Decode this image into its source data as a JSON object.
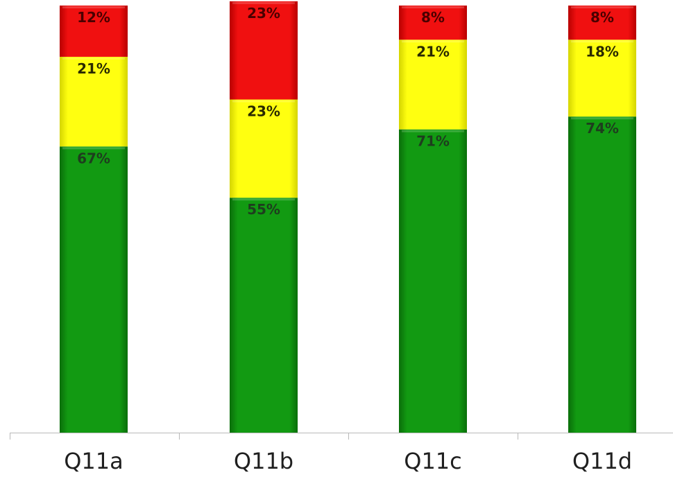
{
  "chart_data": {
    "type": "bar",
    "stacked": true,
    "categories": [
      "Q11a",
      "Q11b",
      "Q11c",
      "Q11d"
    ],
    "series": [
      {
        "color": "#0e8a0e",
        "values": [
          67,
          55,
          71,
          74
        ],
        "labels": [
          "67%",
          "55%",
          "71%",
          "74%"
        ],
        "label_color": "#1e3d1e"
      },
      {
        "color": "#f2f200",
        "values": [
          21,
          23,
          21,
          18
        ],
        "labels": [
          "21%",
          "23%",
          "21%",
          "18%"
        ],
        "label_color": "#2a2a00"
      },
      {
        "color": "#e80000",
        "values": [
          12,
          23,
          8,
          8
        ],
        "labels": [
          "12%",
          "23%",
          "8%",
          "8%"
        ],
        "label_color": "#4a0000"
      }
    ],
    "xlabel": "",
    "ylabel": "",
    "ylim": [
      0,
      100
    ],
    "grid": false,
    "legend": "none"
  }
}
